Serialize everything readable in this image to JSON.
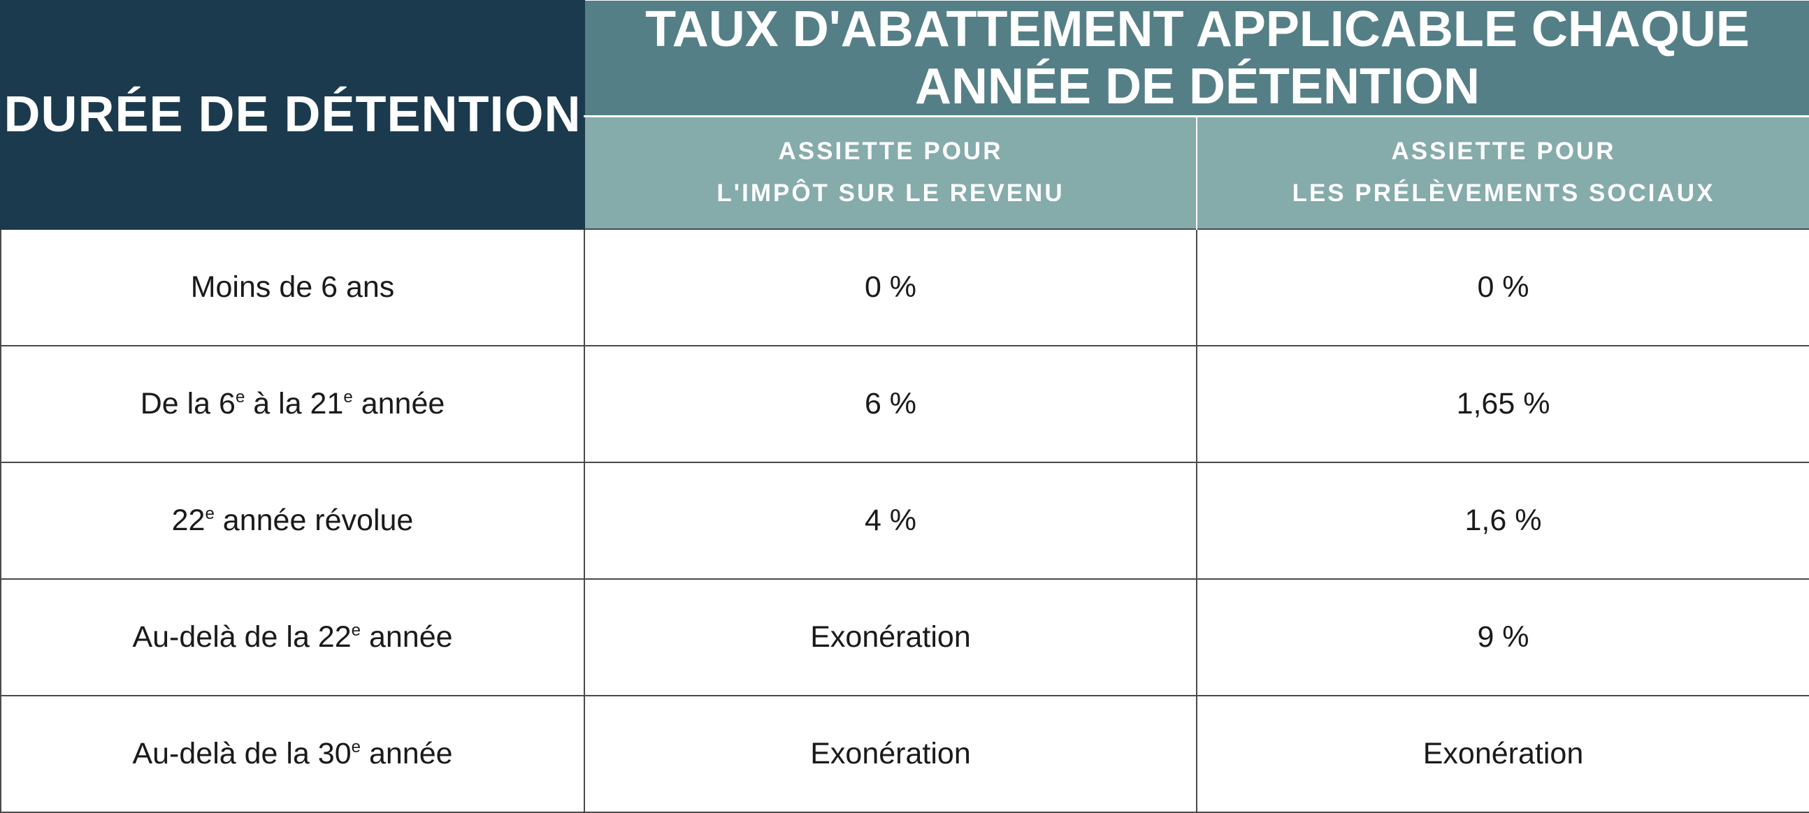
{
  "header": {
    "duree": "DURÉE DE DÉTENTION",
    "taux": "TAUX D'ABATTEMENT APPLICABLE CHAQUE ANNÉE DE DÉTENTION",
    "col_ir": {
      "line1": "ASSIETTE POUR",
      "line2": "L'IMPÔT SUR LE REVENU"
    },
    "col_ps": {
      "line1": "ASSIETTE POUR",
      "line2": "LES PRÉLÈVEMENTS SOCIAUX"
    }
  },
  "rows": [
    {
      "duree": {
        "pre": "Moins de 6 ans"
      },
      "ir": "0 %",
      "ps": "0 %"
    },
    {
      "duree": {
        "pre": "De la 6",
        "sup1": "e",
        "mid": " à la 21",
        "sup2": "e",
        "post": " année"
      },
      "ir": "6 %",
      "ps": "1,65 %"
    },
    {
      "duree": {
        "pre": "22",
        "sup1": "e",
        "mid": " année révolue"
      },
      "ir": "4 %",
      "ps": "1,6 %"
    },
    {
      "duree": {
        "pre": "Au-delà de la 22",
        "sup1": "e",
        "mid": " année"
      },
      "ir": "Exonération",
      "ps": "9 %"
    },
    {
      "duree": {
        "pre": "Au-delà de la 30",
        "sup1": "e",
        "mid": " année"
      },
      "ir": "Exonération",
      "ps": "Exonération"
    }
  ]
}
